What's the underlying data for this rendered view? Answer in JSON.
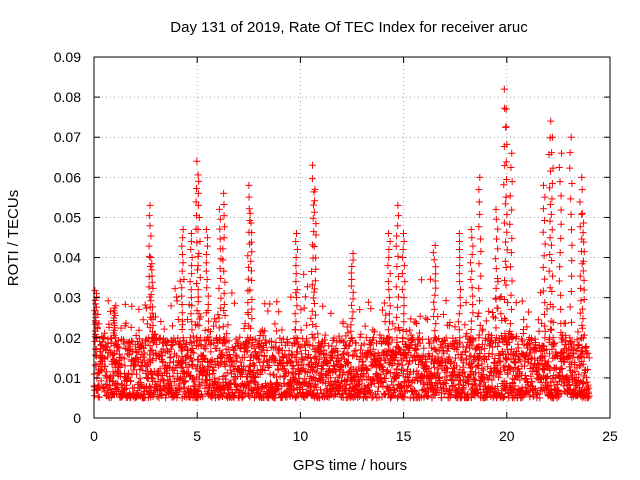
{
  "chart_data": {
    "type": "scatter",
    "title": "Day 131 of 2019, Rate Of TEC Index for receiver aruc",
    "xlabel": "GPS time / hours",
    "ylabel": "ROTI / TECUs",
    "xlim": [
      0,
      25
    ],
    "ylim": [
      0,
      0.09
    ],
    "x_ticks": [
      "0",
      "5",
      "10",
      "15",
      "20",
      "25"
    ],
    "y_ticks": [
      "0",
      "0.01",
      "0.02",
      "0.03",
      "0.04",
      "0.05",
      "0.06",
      "0.07",
      "0.08",
      "0.09"
    ],
    "grid": true,
    "marker": "+",
    "color": "#ff0000",
    "series": [
      {
        "x_start": 0,
        "x_end": 24,
        "sample_interval_hours": 0.0083,
        "typical_range": [
          0.005,
          0.02
        ],
        "peaks": [
          {
            "x": 0.1,
            "y": 0.031
          },
          {
            "x": 1.0,
            "y": 0.028
          },
          {
            "x": 2.7,
            "y": 0.053
          },
          {
            "x": 2.8,
            "y": 0.04
          },
          {
            "x": 4.3,
            "y": 0.047
          },
          {
            "x": 4.7,
            "y": 0.046
          },
          {
            "x": 5.0,
            "y": 0.064
          },
          {
            "x": 5.1,
            "y": 0.059
          },
          {
            "x": 5.5,
            "y": 0.047
          },
          {
            "x": 6.1,
            "y": 0.052
          },
          {
            "x": 6.3,
            "y": 0.056
          },
          {
            "x": 7.5,
            "y": 0.058
          },
          {
            "x": 7.6,
            "y": 0.051
          },
          {
            "x": 9.8,
            "y": 0.046
          },
          {
            "x": 10.6,
            "y": 0.063
          },
          {
            "x": 10.7,
            "y": 0.057
          },
          {
            "x": 12.5,
            "y": 0.041
          },
          {
            "x": 14.3,
            "y": 0.046
          },
          {
            "x": 14.7,
            "y": 0.053
          },
          {
            "x": 15.0,
            "y": 0.046
          },
          {
            "x": 16.5,
            "y": 0.043
          },
          {
            "x": 17.7,
            "y": 0.046
          },
          {
            "x": 18.3,
            "y": 0.047
          },
          {
            "x": 18.7,
            "y": 0.06
          },
          {
            "x": 19.5,
            "y": 0.052
          },
          {
            "x": 19.9,
            "y": 0.082
          },
          {
            "x": 20.0,
            "y": 0.077
          },
          {
            "x": 20.2,
            "y": 0.066
          },
          {
            "x": 21.8,
            "y": 0.058
          },
          {
            "x": 22.1,
            "y": 0.074
          },
          {
            "x": 22.2,
            "y": 0.07
          },
          {
            "x": 22.6,
            "y": 0.066
          },
          {
            "x": 23.1,
            "y": 0.07
          },
          {
            "x": 23.6,
            "y": 0.06
          },
          {
            "x": 23.7,
            "y": 0.051
          }
        ]
      }
    ]
  }
}
